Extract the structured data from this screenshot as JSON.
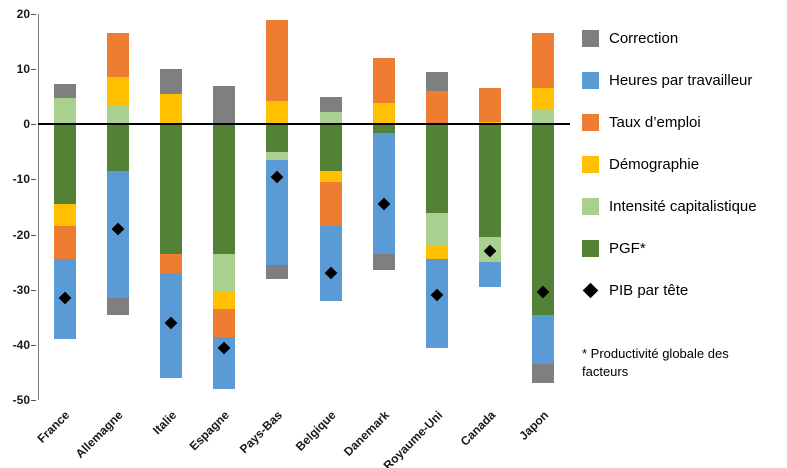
{
  "chart_data": {
    "type": "bar",
    "stacked": true,
    "title": "",
    "categories": [
      "France",
      "Allemagne",
      "Italie",
      "Espagne",
      "Pays-Bas",
      "Belgique",
      "Danemark",
      "Royaume-Uni",
      "Canada",
      "Japon"
    ],
    "series": [
      {
        "name": "Correction",
        "color": "#7F7F7F",
        "values": [
          2.5,
          -3,
          4.5,
          7,
          -2.5,
          2.7,
          -3,
          3.5,
          0,
          -3.5
        ]
      },
      {
        "name": "Heures par travailleur",
        "color": "#5B9BD5",
        "values": [
          -14.5,
          -23,
          -19,
          -9.5,
          -19,
          -13.5,
          -22,
          -16,
          -4.5,
          -9
        ]
      },
      {
        "name": "Taux d’emploi",
        "color": "#ED7D31",
        "values": [
          -6,
          8,
          -3.5,
          -5,
          14.7,
          -8,
          8.2,
          6,
          6,
          10
        ]
      },
      {
        "name": "Démographie",
        "color": "#FFC000",
        "values": [
          -4,
          5.2,
          5.5,
          -3,
          4.3,
          -2,
          3.8,
          -2.5,
          0.5,
          3.7
        ]
      },
      {
        "name": "Intensité capitalistique",
        "color": "#A9D08E",
        "values": [
          4.8,
          3.3,
          0,
          -7,
          -1.5,
          2.3,
          0,
          -6,
          -4.5,
          2.8
        ]
      },
      {
        "name": "PGF*",
        "color": "#538135",
        "values": [
          -14.5,
          -8.5,
          -23.5,
          -23.5,
          -5,
          -8.5,
          -1.5,
          -16,
          -20.5,
          -34.5
        ]
      }
    ],
    "markers": {
      "name": "PIB par tête",
      "color": "#000000",
      "values": [
        -31.5,
        -19,
        -36,
        -40.5,
        -9.5,
        -27,
        -14.5,
        -31,
        -23,
        -30.5
      ]
    },
    "ylim": [
      -50,
      20
    ],
    "yticks": [
      20,
      10,
      0,
      -10,
      -20,
      -30,
      -40,
      -50
    ],
    "legend_position": "right",
    "grid": false
  },
  "footnote": "* Productivité globale des facteurs"
}
